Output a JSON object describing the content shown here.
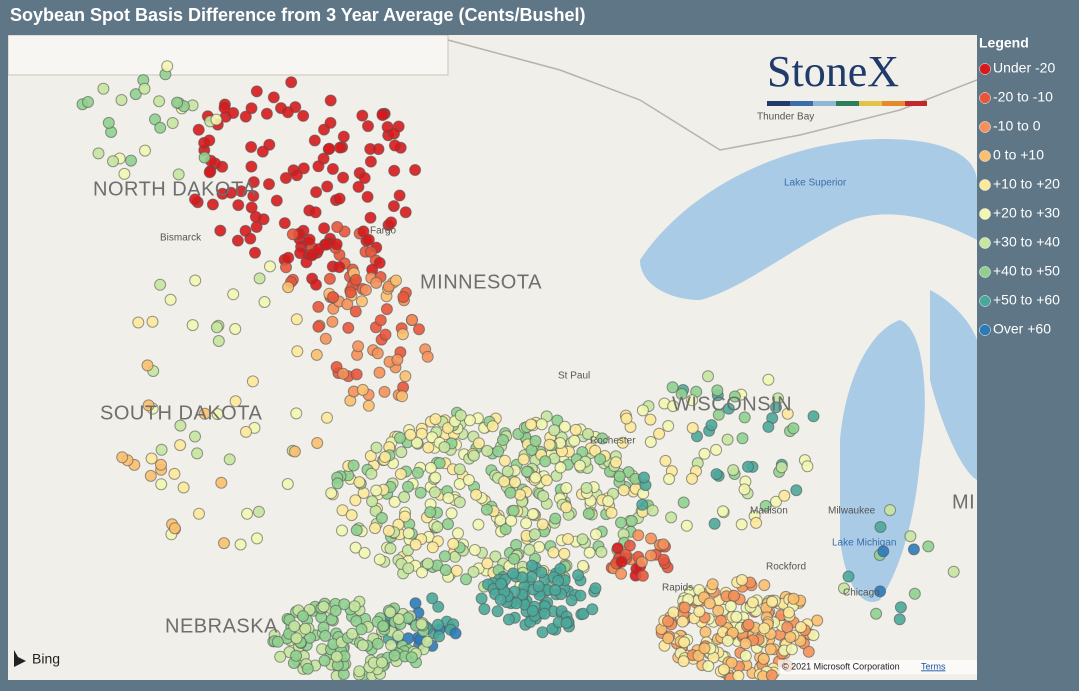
{
  "header": {
    "title": "Soybean Spot Basis Difference from 3 Year Average (Cents/Bushel)"
  },
  "legend": {
    "title": "Legend",
    "items": [
      {
        "label": "Under -20",
        "color": "#d7191c"
      },
      {
        "label": "-20 to -10",
        "color": "#e8553a"
      },
      {
        "label": "-10 to 0",
        "color": "#f4915a"
      },
      {
        "label": "0 to +10",
        "color": "#fbbf6e"
      },
      {
        "label": "+10 to +20",
        "color": "#fde99a"
      },
      {
        "label": "+20 to +30",
        "color": "#f2f6b0"
      },
      {
        "label": "+30 to +40",
        "color": "#c7e6a0"
      },
      {
        "label": "+40 to +50",
        "color": "#8fd08f"
      },
      {
        "label": "+50 to +60",
        "color": "#4aa89a"
      },
      {
        "label": "Over +60",
        "color": "#2b7bba"
      }
    ]
  },
  "map": {
    "states": [
      "NORTH DAKOTA",
      "MINNESOTA",
      "SOUTH DAKOTA",
      "WISCONSIN",
      "NEBRASKA",
      "MI"
    ],
    "places": [
      "Bismarck",
      "Fargo",
      "St Paul",
      "Rochester",
      "Thunder Bay",
      "Lake Superior",
      "Madison",
      "Milwaukee",
      "Lake Michigan",
      "Rockford",
      "Chicago",
      "Rapids"
    ]
  },
  "logo": "StoneX",
  "attribution": {
    "provider": "Bing",
    "copyright": "© 2021 Microsoft Corporation",
    "terms": "Terms"
  }
}
